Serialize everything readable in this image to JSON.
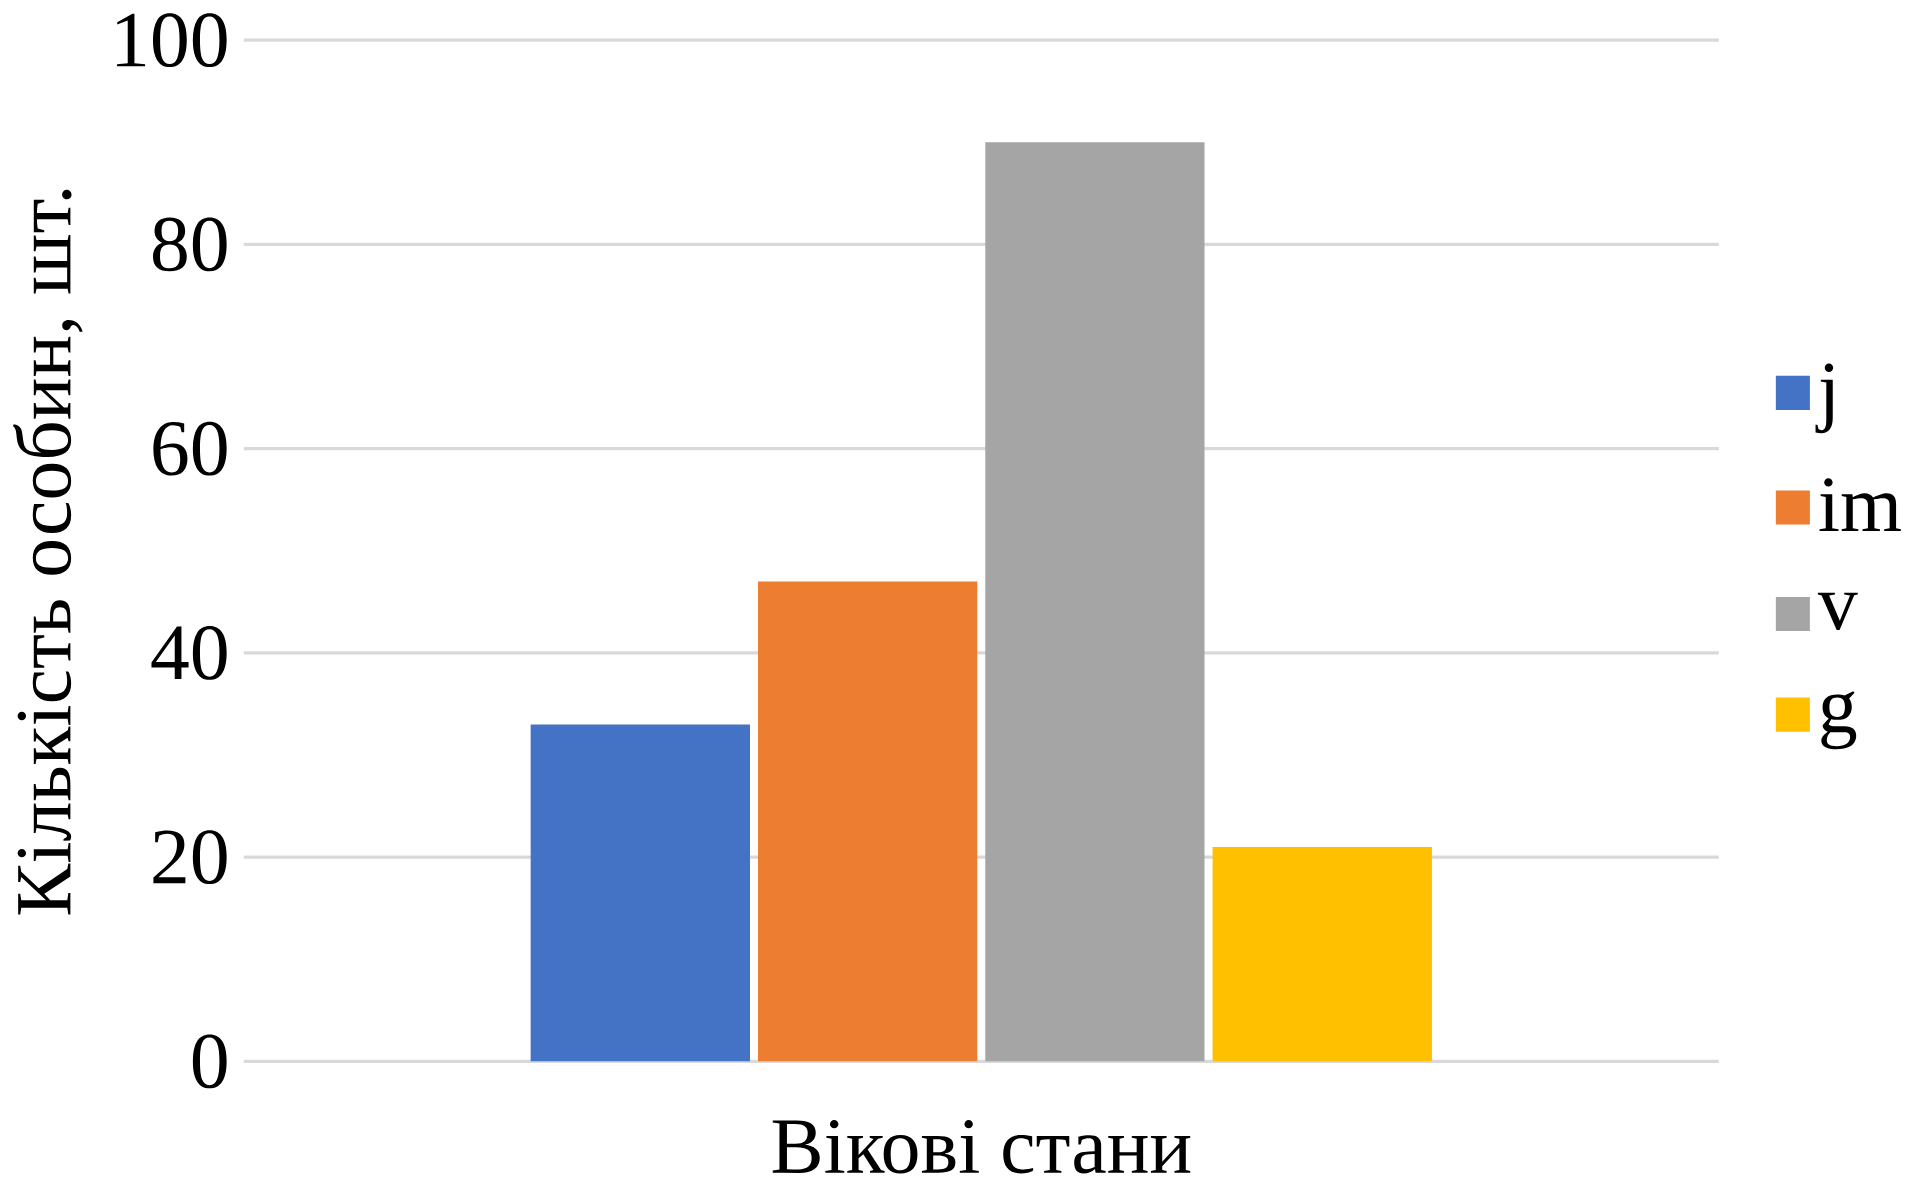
{
  "chart_data": {
    "type": "bar",
    "xlabel": "Вікові стани",
    "ylabel": "Кількість особин, шт.",
    "categories": [
      null
    ],
    "series": [
      {
        "name": "j",
        "color": "#4472c4",
        "values": [
          33
        ]
      },
      {
        "name": "im",
        "color": "#ed7d31",
        "values": [
          47
        ]
      },
      {
        "name": "v",
        "color": "#a5a5a5",
        "values": [
          90
        ]
      },
      {
        "name": "g",
        "color": "#ffc000",
        "values": [
          21
        ]
      }
    ],
    "ylim": [
      0,
      100
    ],
    "yticks": [
      0,
      20,
      40,
      60,
      80,
      100
    ],
    "grid": "y",
    "legend": "right"
  }
}
